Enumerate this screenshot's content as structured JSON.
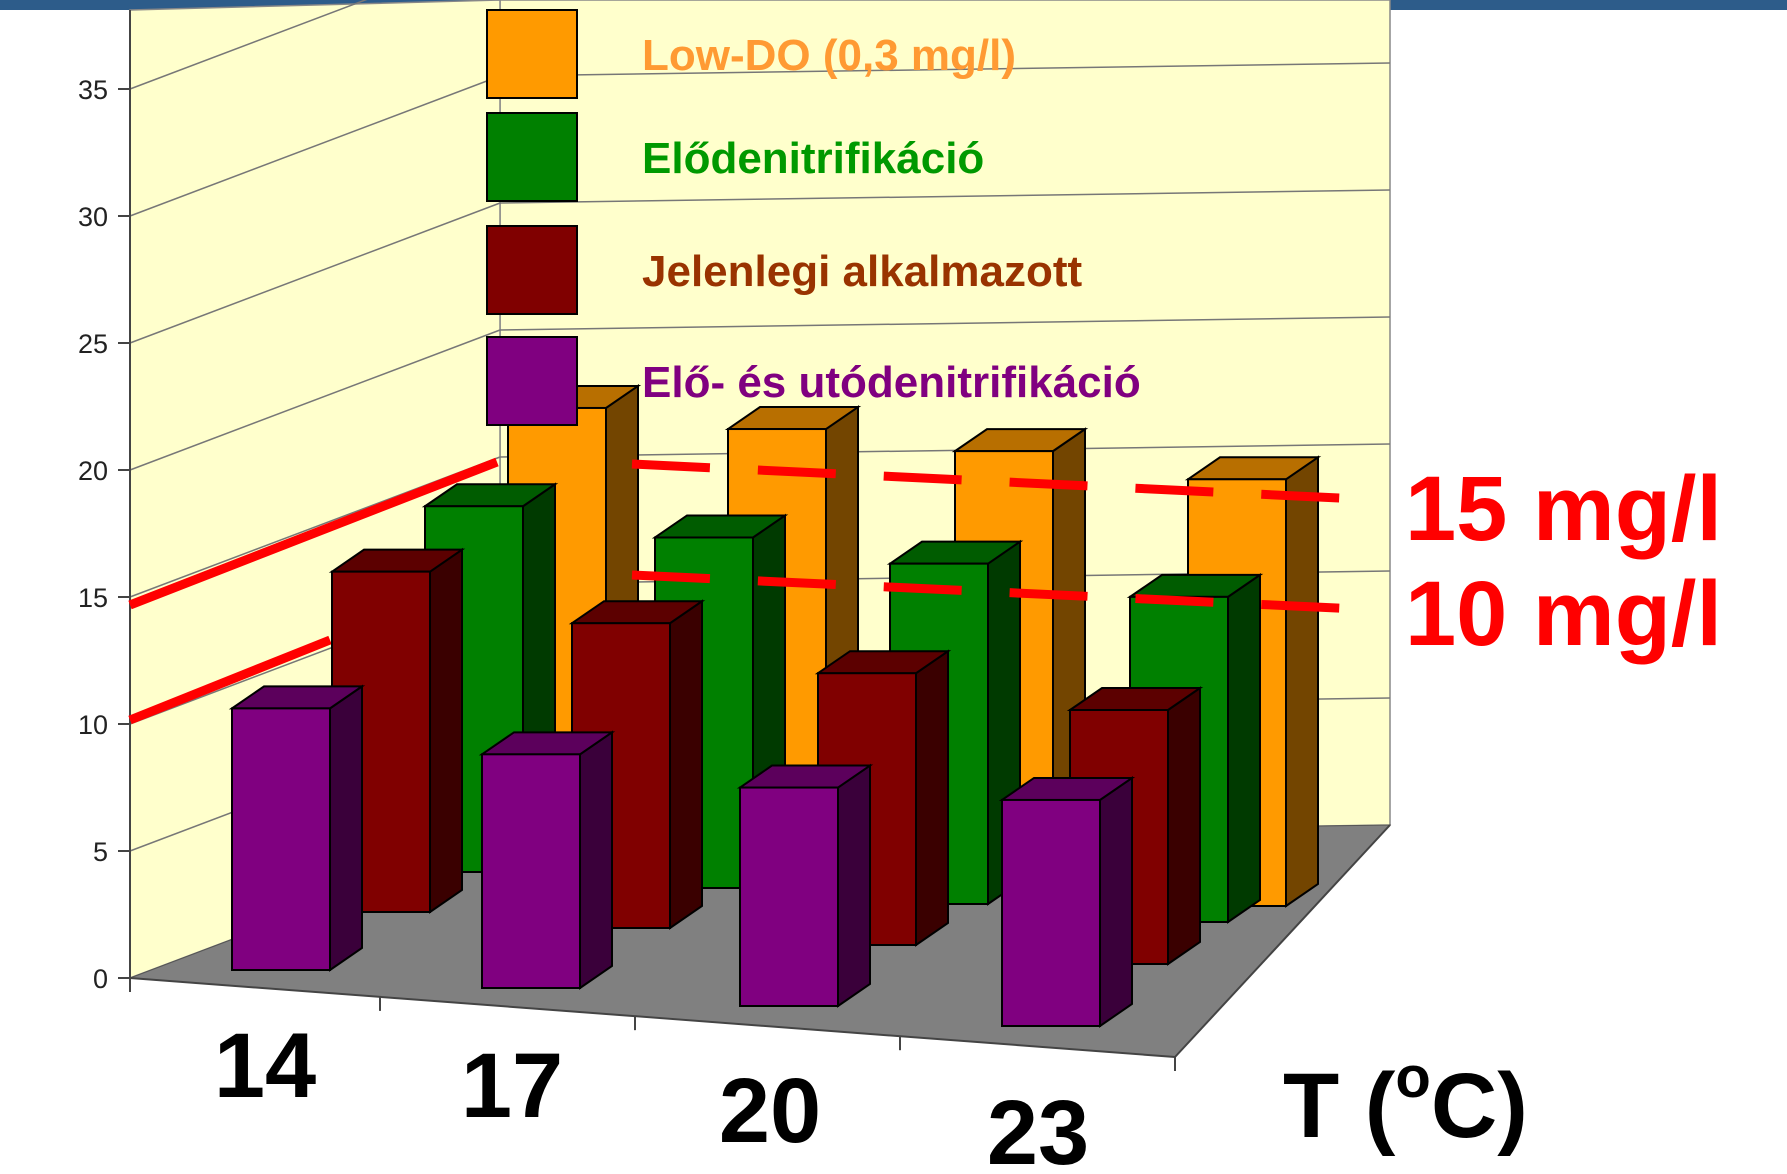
{
  "chart_data": {
    "type": "bar",
    "categories": [
      "14",
      "17",
      "20",
      "23"
    ],
    "series": [
      {
        "name": "Low-DO (0,3 mg/l)",
        "values": [
          17.6,
          17.4,
          17.2,
          16.8
        ],
        "color": "#ff9a00"
      },
      {
        "name": "Elődenitrifikáció",
        "values": [
          14.4,
          13.8,
          13.4,
          12.8
        ],
        "color": "#008000"
      },
      {
        "name": "Jelenlegi alkalmazott",
        "values": [
          13.4,
          12.0,
          10.7,
          10.0
        ],
        "color": "#800000"
      },
      {
        "name": "Elő- és utódenitrifikáció",
        "values": [
          10.3,
          9.2,
          8.6,
          8.9
        ],
        "color": "#800080"
      }
    ],
    "ylim": [
      0,
      38
    ],
    "yticks": [
      0,
      5,
      10,
      15,
      20,
      25,
      30,
      35
    ],
    "xlabel_main": "T (",
    "xlabel_sup": "o",
    "xlabel_tail": "C)",
    "grid": true,
    "legend": "top-center",
    "annotations": [
      {
        "label": "15 mg/l",
        "value": 15
      },
      {
        "label": "10 mg/l",
        "value": 10
      }
    ]
  }
}
